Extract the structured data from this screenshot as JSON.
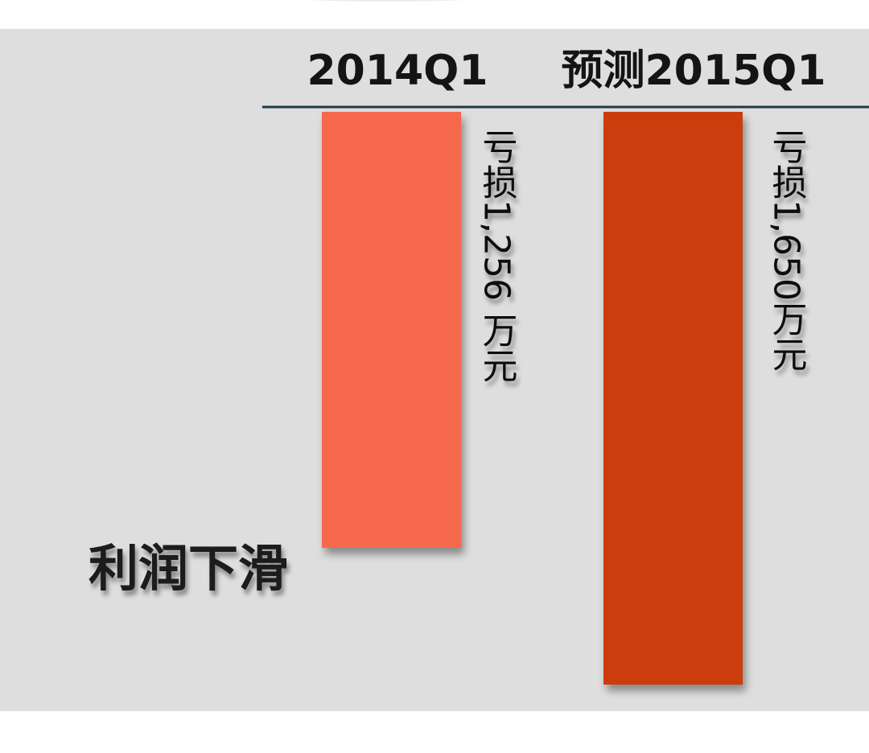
{
  "chart_data": {
    "type": "bar",
    "orientation": "downward",
    "categories": [
      "2014Q1",
      "预测2015Q1"
    ],
    "values": [
      -1256,
      -1650
    ],
    "value_labels": [
      "亏损1,256 万元",
      "亏损1,650万元"
    ],
    "unit": "万元",
    "annotation": "利润下滑",
    "grid": false,
    "legend": "none",
    "colors": [
      "#f7694f",
      "#cc3d08"
    ],
    "baseline_color": "#1e3a4a"
  }
}
